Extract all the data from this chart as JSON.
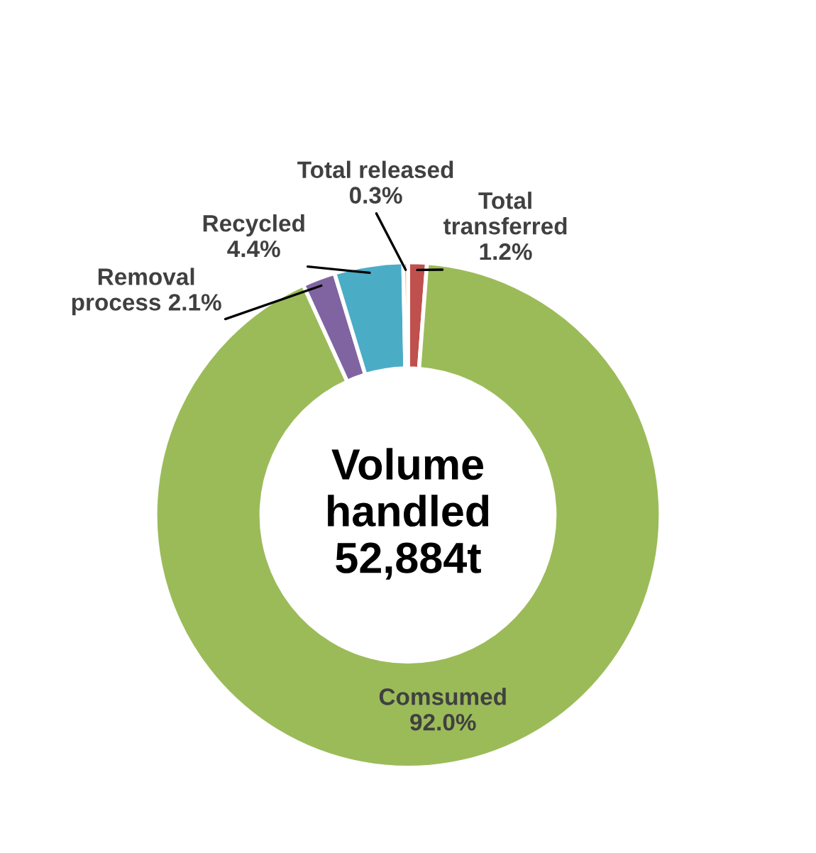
{
  "chart_data": {
    "type": "donut",
    "categories": [
      "Total\ntransferred",
      "Comsumed",
      "Removal\nprocess",
      "Recycled",
      "Total released"
    ],
    "values": [
      1.2,
      92.0,
      2.1,
      4.4,
      0.3
    ],
    "colors": [
      "#c0504d",
      "#9bbb59",
      "#8064a2",
      "#4bacc6",
      "#f79646"
    ],
    "value_labels": [
      "1.2%",
      "92.0%",
      "2.1%",
      "4.4%",
      "0.3%"
    ],
    "annotations": [
      "Volume\nhandled\n52,884t"
    ]
  }
}
